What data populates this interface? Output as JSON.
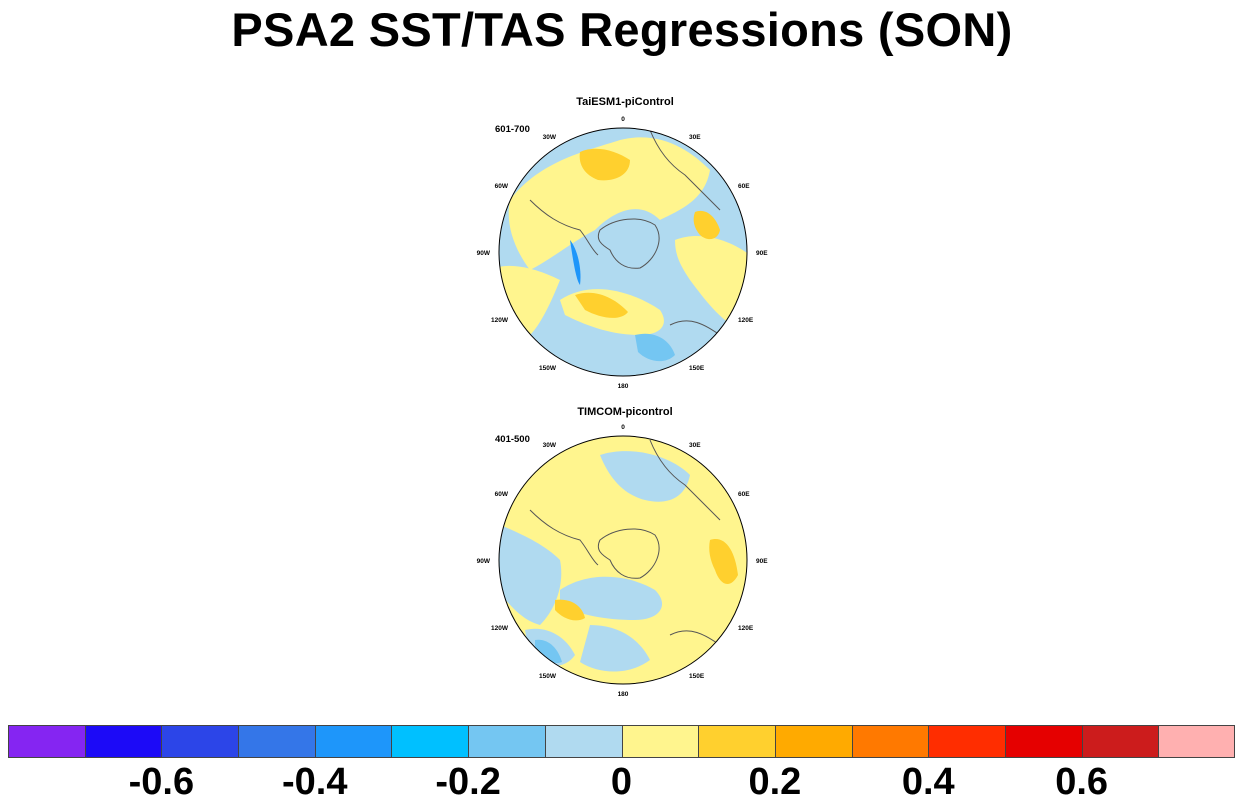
{
  "title": "PSA2 SST/TAS Regressions (SON)",
  "panels": [
    {
      "title": "TaiESM1-piControl",
      "period": "601-700"
    },
    {
      "title": "TIMCOM-picontrol",
      "period": "401-500"
    }
  ],
  "lon_labels": {
    "n0": "0",
    "e30": "30E",
    "e60": "60E",
    "e90": "90E",
    "e120": "120E",
    "e150": "150E",
    "s180": "180",
    "w150": "150W",
    "w120": "120W",
    "w90": "90W",
    "w60": "60W",
    "w30": "30W"
  },
  "colorbar": {
    "colors": [
      "#8525f2",
      "#1c0af7",
      "#2c45e8",
      "#3476e8",
      "#1e96fa",
      "#00c0ff",
      "#74c6f2",
      "#b0daf0",
      "#fff58e",
      "#ffd02e",
      "#ffaa00",
      "#ff7900",
      "#ff2d00",
      "#e50000",
      "#cc1c1c",
      "#ffb0b0"
    ],
    "tick_labels": [
      "-0.6",
      "-0.4",
      "-0.2",
      "0",
      "0.2",
      "0.4",
      "0.6"
    ]
  }
}
